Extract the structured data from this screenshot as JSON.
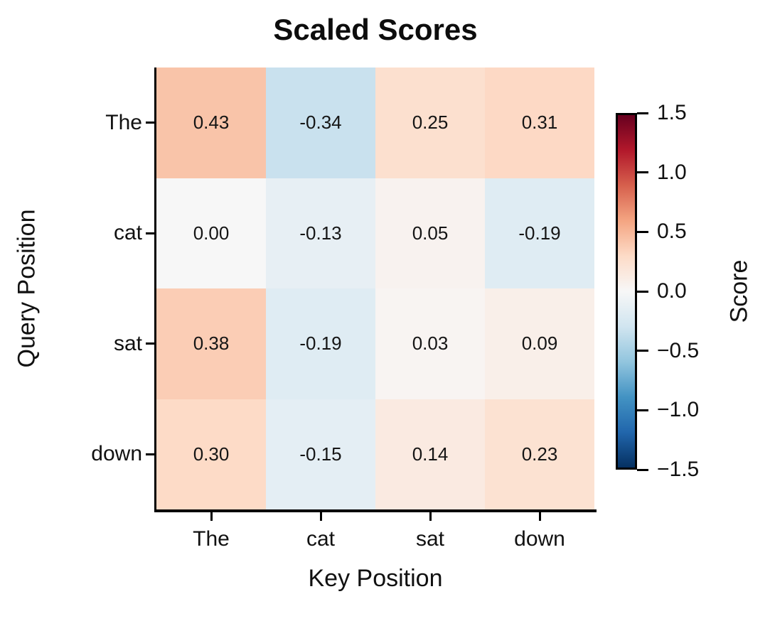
{
  "chart_data": {
    "type": "heatmap",
    "title": "Scaled Scores",
    "xlabel": "Key Position",
    "ylabel": "Query Position",
    "x_categories": [
      "The",
      "cat",
      "sat",
      "down"
    ],
    "y_categories": [
      "The",
      "cat",
      "sat",
      "down"
    ],
    "values": [
      [
        0.43,
        -0.34,
        0.25,
        0.31
      ],
      [
        0.0,
        -0.13,
        0.05,
        -0.19
      ],
      [
        0.38,
        -0.19,
        0.03,
        0.09
      ],
      [
        0.3,
        -0.15,
        0.14,
        0.23
      ]
    ],
    "value_decimals": 2,
    "annotation_color": "#151515",
    "grid": false,
    "legend": false,
    "colormap": {
      "name": "RdBu_r",
      "vmin": -1.5,
      "vmax": 1.5,
      "stops_red_to_blue": [
        "#67001f",
        "#b2182b",
        "#d6604d",
        "#f4a582",
        "#fddbc7",
        "#f7f7f7",
        "#d1e5f0",
        "#92c5de",
        "#4393c3",
        "#2166ac",
        "#053061"
      ]
    },
    "colorbar": {
      "label": "Score",
      "tick_labels": [
        "1.5",
        "1.0",
        "0.5",
        "0.0",
        "−0.5",
        "−1.0",
        "−1.5"
      ],
      "tick_values": [
        1.5,
        1.0,
        0.5,
        0.0,
        -0.5,
        -1.0,
        -1.5
      ]
    }
  }
}
